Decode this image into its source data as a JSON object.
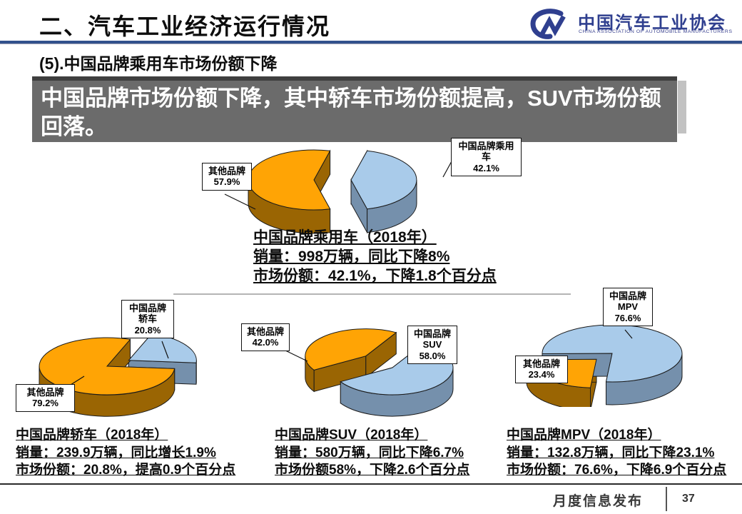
{
  "header": {
    "title": "二、汽车工业经济运行情况",
    "logo": {
      "name_cn": "中国汽车工业协会",
      "name_en": "CHINA ASSOCIATION OF AUTOMOBILE MANUFACTURERS"
    }
  },
  "subtitle": "(5).中国品牌乘用车市场份额下降",
  "banner": "中国品牌市场份额下降，其中轿车市场份额提高，SUV市场份额回落。",
  "footer": {
    "label": "月度信息发布",
    "page": "37"
  },
  "colors": {
    "china_brand_top": "#A9CBEA",
    "china_brand_side": "#7590AC",
    "others_top": "#FFA405",
    "others_side": "#9A6503",
    "banner_bg": "#6B6B6B",
    "accent_navy": "#2F3F8F"
  },
  "chart_data": [
    {
      "type": "pie",
      "title": "中国品牌乘用车（2018年）",
      "slices": [
        {
          "label": "中国品牌乘用车",
          "pct": 42.1,
          "color": "china_brand"
        },
        {
          "label": "其他品牌",
          "pct": 57.9,
          "color": "others"
        }
      ],
      "callouts": [
        {
          "lines": [
            "其他品牌",
            "57.9%"
          ]
        },
        {
          "lines": [
            "中国品牌乘用",
            "车",
            "42.1%"
          ]
        }
      ],
      "notes": [
        "销量：998万辆，同比下降8%",
        "市场份额：42.1%，下降1.8个百分点"
      ]
    },
    {
      "type": "pie",
      "title": "中国品牌轿车（2018年）",
      "slices": [
        {
          "label": "中国品牌轿车",
          "pct": 20.8,
          "color": "china_brand"
        },
        {
          "label": "其他品牌",
          "pct": 79.2,
          "color": "others"
        }
      ],
      "callouts": [
        {
          "lines": [
            "中国品牌",
            "轿车",
            "20.8%"
          ]
        },
        {
          "lines": [
            "其他品牌",
            "79.2%"
          ]
        }
      ],
      "notes": [
        "销量：239.9万辆，同比增长1.9%",
        "市场份额：20.8%，提高0.9个百分点"
      ]
    },
    {
      "type": "pie",
      "title": "中国品牌SUV（2018年）",
      "slices": [
        {
          "label": "中国品牌SUV",
          "pct": 58.0,
          "color": "china_brand"
        },
        {
          "label": "其他品牌",
          "pct": 42.0,
          "color": "others"
        }
      ],
      "callouts": [
        {
          "lines": [
            "其他品牌",
            "42.0%"
          ]
        },
        {
          "lines": [
            "中国品牌",
            "SUV",
            "58.0%"
          ]
        }
      ],
      "notes": [
        "销量：580万辆，同比下降6.7%",
        "市场份额58%，下降2.6个百分点"
      ]
    },
    {
      "type": "pie",
      "title": "中国品牌MPV（2018年）",
      "slices": [
        {
          "label": "其他品牌",
          "pct": 23.4,
          "color": "others"
        },
        {
          "label": "中国品牌MPV",
          "pct": 76.6,
          "color": "china_brand"
        }
      ],
      "callouts": [
        {
          "lines": [
            "中国品牌",
            "MPV",
            "76.6%"
          ]
        },
        {
          "lines": [
            "其他品牌",
            "23.4%"
          ]
        }
      ],
      "notes": [
        "销量：132.8万辆，同比下降23.1%",
        "市场份额：76.6%，下降6.9个百分点"
      ]
    }
  ]
}
